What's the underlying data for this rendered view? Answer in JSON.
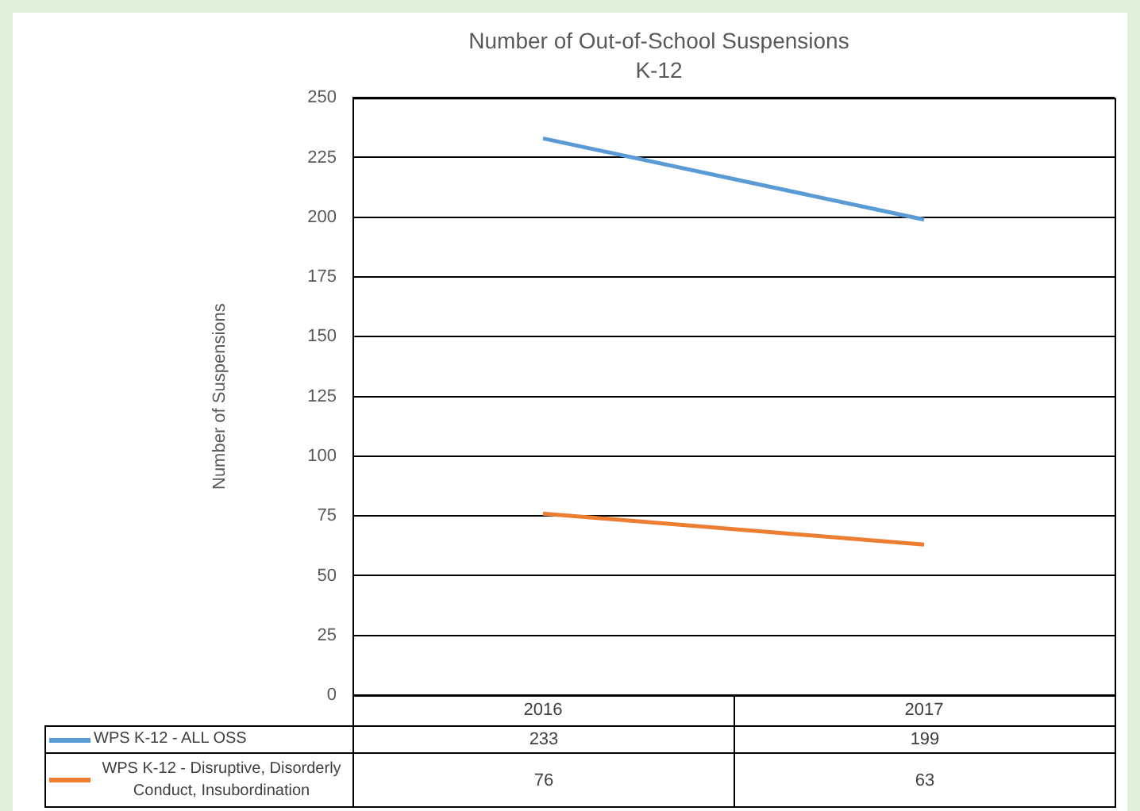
{
  "chart_data": {
    "type": "line",
    "title": "Number of Out-of-School Suspensions",
    "subtitle": "K-12",
    "ylabel": "Number of Suspensions",
    "categories": [
      "2016",
      "2017"
    ],
    "series": [
      {
        "name": "WPS K-12 - ALL OSS",
        "color": "#5b9bd5",
        "values": [
          233,
          199
        ]
      },
      {
        "name": "WPS K-12 - Disruptive, Disorderly Conduct, Insubordination",
        "color": "#ed7d31",
        "values": [
          76,
          63
        ]
      }
    ],
    "ylim": [
      0,
      250
    ],
    "yticks": [
      0,
      25,
      50,
      75,
      100,
      125,
      150,
      175,
      200,
      225,
      250
    ],
    "grid": "y",
    "legend": "bottom",
    "data_labels": true,
    "marker": "none"
  }
}
